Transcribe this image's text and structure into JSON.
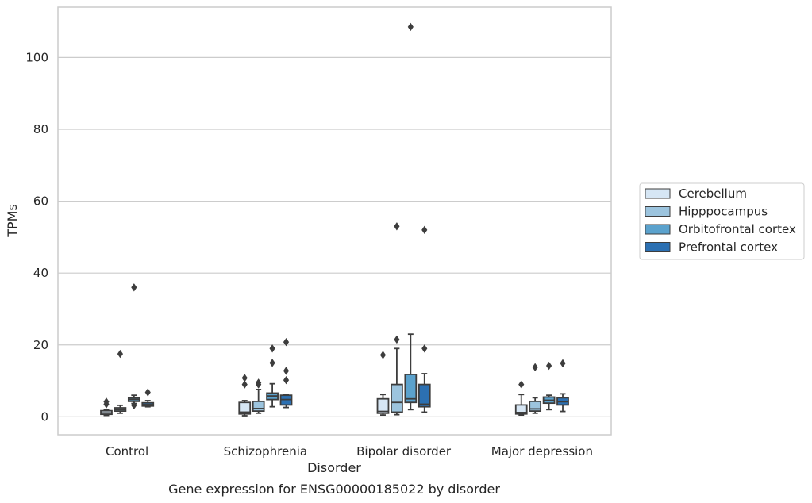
{
  "chart_data": {
    "type": "boxplot",
    "caption": "Gene expression for ENSG00000185022 by disorder",
    "xlabel": "Disorder",
    "ylabel": "TPMs",
    "ylim": [
      -5,
      114
    ],
    "yticks": [
      0,
      20,
      40,
      60,
      80,
      100
    ],
    "grid": "horizontal",
    "legend_placement": "right",
    "categories": [
      "Control",
      "Schizophrenia",
      "Bipolar disorder",
      "Major depression"
    ],
    "series": [
      {
        "name": "Cerebellum",
        "color": "#d6e6f4",
        "boxes": [
          {
            "whislo": 0.4,
            "q1": 0.7,
            "med": 1.1,
            "q3": 1.7,
            "whishi": 2.0,
            "fliers": [
              3.5,
              4.2
            ]
          },
          {
            "whislo": 0.3,
            "q1": 0.8,
            "med": 1.3,
            "q3": 4.0,
            "whishi": 4.5,
            "fliers": [
              9.0,
              10.8
            ]
          },
          {
            "whislo": 0.5,
            "q1": 1.0,
            "med": 1.5,
            "q3": 5.0,
            "whishi": 6.2,
            "fliers": [
              17.2
            ]
          },
          {
            "whislo": 0.5,
            "q1": 0.8,
            "med": 1.2,
            "q3": 3.3,
            "whishi": 6.2,
            "fliers": [
              9.0
            ]
          }
        ]
      },
      {
        "name": "Hipppocampus",
        "color": "#9cc4de",
        "boxes": [
          {
            "whislo": 1.0,
            "q1": 1.6,
            "med": 2.0,
            "q3": 2.5,
            "whishi": 3.2,
            "fliers": [
              17.5
            ]
          },
          {
            "whislo": 1.0,
            "q1": 1.6,
            "med": 2.3,
            "q3": 4.3,
            "whishi": 7.6,
            "fliers": [
              9.0,
              9.5
            ]
          },
          {
            "whislo": 0.6,
            "q1": 1.3,
            "med": 4.0,
            "q3": 9.0,
            "whishi": 19.0,
            "fliers": [
              21.5,
              53.0
            ]
          },
          {
            "whislo": 1.0,
            "q1": 1.6,
            "med": 2.2,
            "q3": 4.3,
            "whishi": 5.3,
            "fliers": [
              13.8
            ]
          }
        ]
      },
      {
        "name": "Orbitofrontal cortex",
        "color": "#5ba2cd",
        "boxes": [
          {
            "whislo": 3.7,
            "q1": 4.3,
            "med": 4.8,
            "q3": 5.2,
            "whishi": 6.0,
            "fliers": [
              3.2,
              36.0
            ]
          },
          {
            "whislo": 2.8,
            "q1": 4.8,
            "med": 5.8,
            "q3": 6.6,
            "whishi": 9.2,
            "fliers": [
              15.0,
              19.0
            ]
          },
          {
            "whislo": 2.0,
            "q1": 4.0,
            "med": 5.0,
            "q3": 11.8,
            "whishi": 23.0,
            "fliers": [
              108.5
            ]
          },
          {
            "whislo": 2.0,
            "q1": 3.8,
            "med": 4.6,
            "q3": 5.5,
            "whishi": 6.0,
            "fliers": [
              14.2
            ]
          }
        ]
      },
      {
        "name": "Prefrontal cortex",
        "color": "#2c70b2",
        "boxes": [
          {
            "whislo": 2.8,
            "q1": 3.0,
            "med": 3.4,
            "q3": 3.9,
            "whishi": 4.5,
            "fliers": [
              6.8
            ]
          },
          {
            "whislo": 2.6,
            "q1": 3.3,
            "med": 4.8,
            "q3": 6.0,
            "whishi": 6.2,
            "fliers": [
              10.2,
              12.8,
              20.8
            ]
          },
          {
            "whislo": 1.3,
            "q1": 2.8,
            "med": 3.5,
            "q3": 9.0,
            "whishi": 12.0,
            "fliers": [
              19.0,
              52.0
            ]
          },
          {
            "whislo": 1.5,
            "q1": 3.3,
            "med": 4.2,
            "q3": 5.3,
            "whishi": 6.4,
            "fliers": [
              14.9
            ]
          }
        ]
      }
    ]
  }
}
